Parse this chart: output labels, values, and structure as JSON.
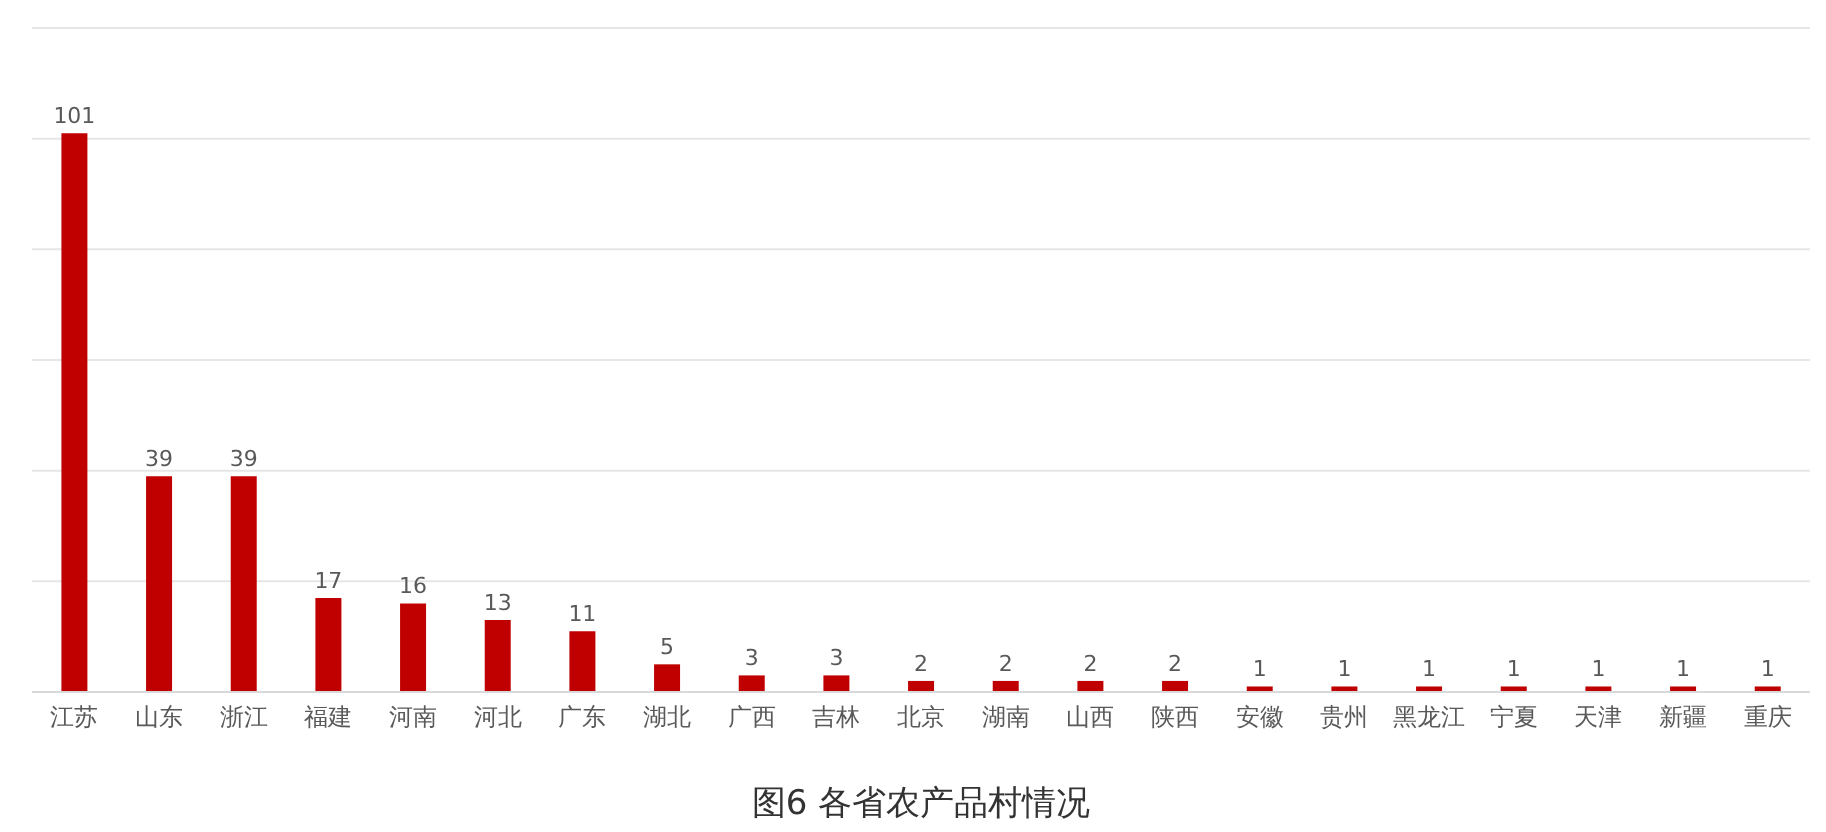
{
  "chart_data": {
    "type": "bar",
    "title": "图6 各省农产品村情况",
    "categories": [
      "江苏",
      "山东",
      "浙江",
      "福建",
      "河南",
      "河北",
      "广东",
      "湖北",
      "广西",
      "吉林",
      "北京",
      "湖南",
      "山西",
      "陕西",
      "安徽",
      "贵州",
      "黑龙江",
      "宁夏",
      "天津",
      "新疆",
      "重庆"
    ],
    "values": [
      101,
      39,
      39,
      17,
      16,
      13,
      11,
      5,
      3,
      3,
      2,
      2,
      2,
      2,
      1,
      1,
      1,
      1,
      1,
      1,
      1
    ],
    "color": "#c00000",
    "ylim": [
      0,
      120
    ],
    "yticks": [
      0,
      20,
      40,
      60,
      80,
      100,
      120
    ],
    "grid": "y",
    "tick_labels": "x",
    "data_labels": true,
    "legend": false
  }
}
